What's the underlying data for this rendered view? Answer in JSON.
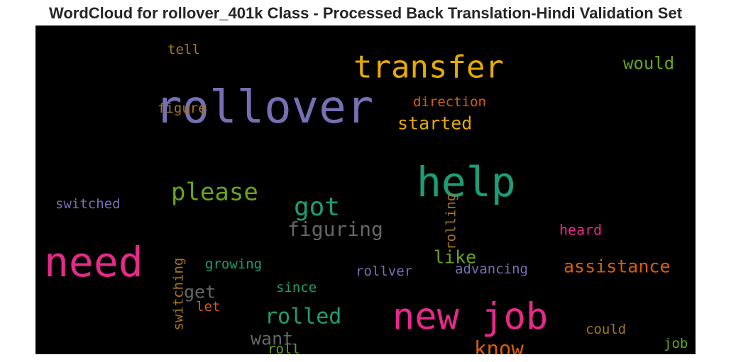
{
  "title": "WordCloud for rollover_401k Class - Processed Back Translation-Hindi Validation Set",
  "chart_data": {
    "type": "wordcloud",
    "background": "#000000",
    "words": [
      {
        "text": "rollover",
        "color": "#7570b3"
      },
      {
        "text": "transfer",
        "color": "#e6ab02"
      },
      {
        "text": "help",
        "color": "#1b9e77"
      },
      {
        "text": "need",
        "color": "#e7298a"
      },
      {
        "text": "new job",
        "color": "#e7298a"
      },
      {
        "text": "please",
        "color": "#66a61e"
      },
      {
        "text": "got",
        "color": "#1b9e77"
      },
      {
        "text": "figuring",
        "color": "#666666"
      },
      {
        "text": "would",
        "color": "#66a61e"
      },
      {
        "text": "started",
        "color": "#e6ab02"
      },
      {
        "text": "direction",
        "color": "#d95f02"
      },
      {
        "text": "tell",
        "color": "#a6761d"
      },
      {
        "text": "figure",
        "color": "#a6761d"
      },
      {
        "text": "switched",
        "color": "#7570b3"
      },
      {
        "text": "rolling",
        "color": "#a6761d"
      },
      {
        "text": "like",
        "color": "#66a61e"
      },
      {
        "text": "assistance",
        "color": "#d95f02"
      },
      {
        "text": "heard",
        "color": "#e7298a"
      },
      {
        "text": "advancing",
        "color": "#7570b3"
      },
      {
        "text": "rollver",
        "color": "#7570b3"
      },
      {
        "text": "growing",
        "color": "#1b9e77"
      },
      {
        "text": "switching",
        "color": "#a6761d"
      },
      {
        "text": "get",
        "color": "#666666"
      },
      {
        "text": "let",
        "color": "#d95f02"
      },
      {
        "text": "since",
        "color": "#1b9e77"
      },
      {
        "text": "rolled",
        "color": "#1b9e77"
      },
      {
        "text": "want",
        "color": "#666666"
      },
      {
        "text": "roll",
        "color": "#66a61e"
      },
      {
        "text": "know",
        "color": "#d95f02"
      },
      {
        "text": "could",
        "color": "#a6761d"
      },
      {
        "text": "job",
        "color": "#66a61e"
      }
    ]
  }
}
